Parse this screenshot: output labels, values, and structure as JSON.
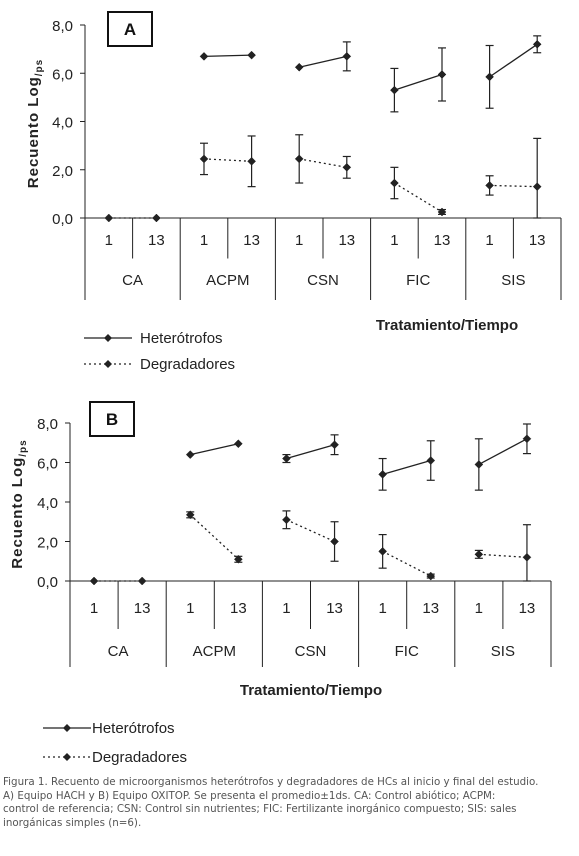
{
  "chart_data": [
    {
      "type": "line",
      "panel_label": "A",
      "ylabel": "Recuento Log",
      "ylabel_sub": "/ps",
      "xlabel": "Tratamiento/Tiempo",
      "ylim": [
        0,
        8
      ],
      "yticks": [
        "0,0",
        "2,0",
        "4,0",
        "6,0",
        "8,0"
      ],
      "groups": [
        "CA",
        "ACPM",
        "CSN",
        "FIC",
        "SIS"
      ],
      "times": [
        "1",
        "13"
      ],
      "series": [
        {
          "name": "Heterótrofos",
          "style": "solid",
          "values": [
            [
              null,
              null
            ],
            [
              6.7,
              6.75
            ],
            [
              6.25,
              6.7
            ],
            [
              5.3,
              5.95
            ],
            [
              5.85,
              7.2
            ]
          ],
          "errors": [
            [
              null,
              null
            ],
            [
              0,
              0
            ],
            [
              0,
              0.6
            ],
            [
              0.9,
              1.1
            ],
            [
              1.3,
              0.35
            ]
          ]
        },
        {
          "name": "Degradadores",
          "style": "dotted",
          "values": [
            [
              0,
              0
            ],
            [
              2.45,
              2.35
            ],
            [
              2.45,
              2.1
            ],
            [
              1.45,
              0.25
            ],
            [
              1.35,
              1.3
            ]
          ],
          "errors": [
            [
              0,
              0
            ],
            [
              0.65,
              1.05
            ],
            [
              1.0,
              0.45
            ],
            [
              0.65,
              0.1
            ],
            [
              0.4,
              2.0
            ]
          ]
        }
      ]
    },
    {
      "type": "line",
      "panel_label": "B",
      "ylabel": "Recuento Log",
      "ylabel_sub": "/ps",
      "xlabel": "Tratamiento/Tiempo",
      "ylim": [
        0,
        8
      ],
      "yticks": [
        "0,0",
        "2,0",
        "4,0",
        "6,0",
        "8,0"
      ],
      "groups": [
        "CA",
        "ACPM",
        "CSN",
        "FIC",
        "SIS"
      ],
      "times": [
        "1",
        "13"
      ],
      "series": [
        {
          "name": "Heterótrofos",
          "style": "solid",
          "values": [
            [
              null,
              null
            ],
            [
              6.4,
              6.95
            ],
            [
              6.2,
              6.9
            ],
            [
              5.4,
              6.1
            ],
            [
              5.9,
              7.2
            ]
          ],
          "errors": [
            [
              null,
              null
            ],
            [
              0,
              0
            ],
            [
              0.2,
              0.5
            ],
            [
              0.8,
              1.0
            ],
            [
              1.3,
              0.75
            ]
          ]
        },
        {
          "name": "Degradadores",
          "style": "dotted",
          "values": [
            [
              0,
              0
            ],
            [
              3.35,
              1.1
            ],
            [
              3.1,
              2.0
            ],
            [
              1.5,
              0.25
            ],
            [
              1.35,
              1.2
            ]
          ],
          "errors": [
            [
              0,
              0
            ],
            [
              0.15,
              0.15
            ],
            [
              0.45,
              1.0
            ],
            [
              0.85,
              0.1
            ],
            [
              0.2,
              1.65
            ]
          ]
        }
      ]
    }
  ],
  "caption": {
    "line1": "Figura 1. Recuento de microorganismos heterótrofos y degradadores de HCs al inicio y final del estudio.",
    "line2": "A) Equipo HACH y B) Equipo OXITOP. Se presenta el promedio±1ds. CA: Control abiótico; ACPM:",
    "line3": "control de referencia; CSN: Control sin nutrientes; FIC: Fertilizante inorgánico compuesto; SIS: sales",
    "line4": "inorgánicas simples (n=6)."
  }
}
